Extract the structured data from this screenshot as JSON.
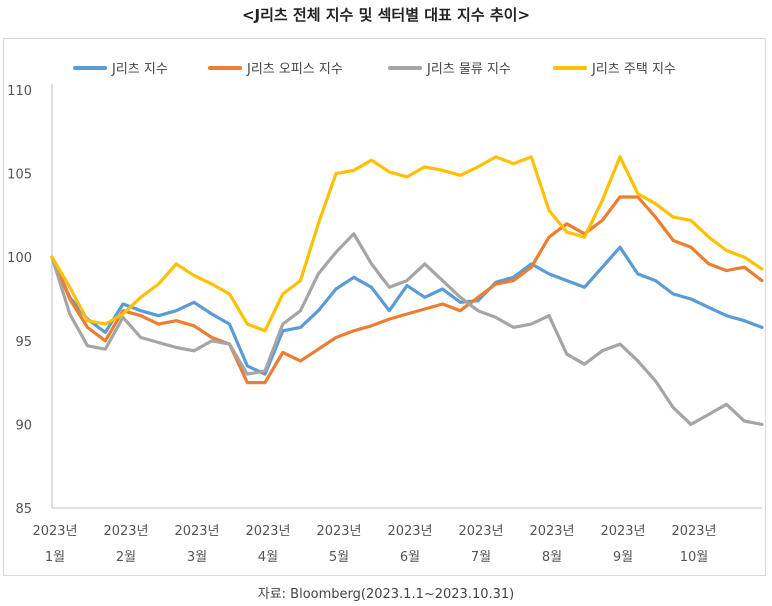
{
  "title": "<J리츠 전체 지수 및 섹터별 대표 지수 추이>",
  "source": "자료: Bloomberg(2023.1.1~2023.10.31)",
  "chart_data": {
    "type": "line",
    "title": "<J리츠 전체 지수 및 섹터별 대표 지수 추이>",
    "xlabel": "",
    "ylabel": "",
    "ylim": [
      85,
      110
    ],
    "yticks": [
      85,
      90,
      95,
      100,
      105,
      110
    ],
    "xlim": [
      0,
      10
    ],
    "xticks": [
      {
        "x": 0,
        "year": "2023년",
        "month": "1월"
      },
      {
        "x": 1,
        "year": "2023년",
        "month": "2월"
      },
      {
        "x": 2,
        "year": "2023년",
        "month": "3월"
      },
      {
        "x": 3,
        "year": "2023년",
        "month": "4월"
      },
      {
        "x": 4,
        "year": "2023년",
        "month": "5월"
      },
      {
        "x": 5,
        "year": "2023년",
        "month": "6월"
      },
      {
        "x": 6,
        "year": "2023년",
        "month": "7월"
      },
      {
        "x": 7,
        "year": "2023년",
        "month": "8월"
      },
      {
        "x": 8,
        "year": "2023년",
        "month": "9월"
      },
      {
        "x": 9,
        "year": "2023년",
        "month": "10월"
      }
    ],
    "grid": false,
    "legend_position": "top",
    "x": [
      0.0,
      0.25,
      0.5,
      0.75,
      1.0,
      1.25,
      1.5,
      1.75,
      2.0,
      2.25,
      2.5,
      2.75,
      3.0,
      3.25,
      3.5,
      3.75,
      4.0,
      4.25,
      4.5,
      4.75,
      5.0,
      5.25,
      5.5,
      5.75,
      6.0,
      6.25,
      6.5,
      6.75,
      7.0,
      7.25,
      7.5,
      7.75,
      8.0,
      8.25,
      8.5,
      8.75,
      9.0,
      9.25,
      9.5,
      9.75,
      10.0
    ],
    "series": [
      {
        "name": "J리츠 지수",
        "color": "#5b9bd5",
        "values": [
          100,
          97.6,
          96.3,
          95.5,
          97.2,
          96.8,
          96.5,
          96.8,
          97.3,
          96.6,
          96.0,
          93.5,
          93.0,
          95.6,
          95.8,
          96.8,
          98.1,
          98.8,
          98.2,
          96.8,
          98.3,
          97.6,
          98.1,
          97.3,
          97.4,
          98.5,
          98.8,
          99.6,
          99.0,
          98.6,
          98.2,
          99.4,
          100.6,
          99.0,
          98.6,
          97.8,
          97.5,
          97.0,
          96.5,
          96.2,
          95.8
        ]
      },
      {
        "name": "J리츠 오피스 지수",
        "color": "#ed7d31",
        "values": [
          100,
          97.5,
          95.8,
          95.0,
          96.8,
          96.5,
          96.0,
          96.2,
          95.9,
          95.2,
          94.8,
          92.5,
          92.5,
          94.3,
          93.8,
          94.5,
          95.2,
          95.6,
          95.9,
          96.3,
          96.6,
          96.9,
          97.2,
          96.8,
          97.6,
          98.4,
          98.6,
          99.4,
          101.2,
          102.0,
          101.4,
          102.2,
          103.6,
          103.6,
          102.4,
          101.0,
          100.6,
          99.6,
          99.2,
          99.4,
          98.6
        ]
      },
      {
        "name": "J리츠 물류 지수",
        "color": "#a5a5a5",
        "values": [
          100,
          96.6,
          94.7,
          94.5,
          96.4,
          95.2,
          94.9,
          94.6,
          94.4,
          95.0,
          94.8,
          93.0,
          93.2,
          96.0,
          96.8,
          99.0,
          100.3,
          101.4,
          99.6,
          98.2,
          98.6,
          99.6,
          98.6,
          97.6,
          96.8,
          96.4,
          95.8,
          96.0,
          96.5,
          94.2,
          93.6,
          94.4,
          94.8,
          93.8,
          92.6,
          91.0,
          90.0,
          90.6,
          91.2,
          90.2,
          90.0
        ]
      },
      {
        "name": "J리츠 주택 지수",
        "color": "#ffc000",
        "values": [
          100,
          98.2,
          96.2,
          96.0,
          96.6,
          97.6,
          98.4,
          99.6,
          98.9,
          98.4,
          97.8,
          96.0,
          95.6,
          97.8,
          98.6,
          102.0,
          105.0,
          105.2,
          105.8,
          105.1,
          104.8,
          105.4,
          105.2,
          104.9,
          105.4,
          106.0,
          105.6,
          106.0,
          102.8,
          101.5,
          101.2,
          103.4,
          106.0,
          103.8,
          103.2,
          102.4,
          102.2,
          101.2,
          100.4,
          100.0,
          99.3
        ]
      }
    ]
  }
}
